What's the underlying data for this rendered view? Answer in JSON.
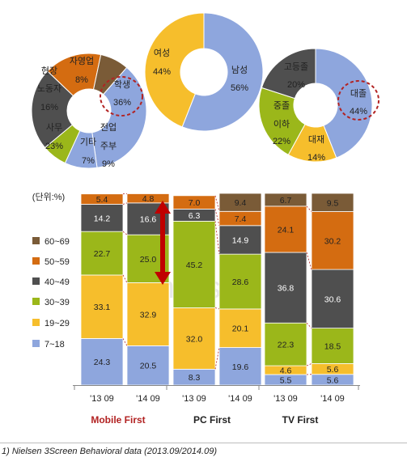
{
  "colors": {
    "c7_18": "#8EA6DD",
    "c19_29": "#F6BE2C",
    "c30_39": "#9BB71A",
    "c40_49": "#4F4F4F",
    "c50_59": "#D46C11",
    "c60_69": "#7A5B37",
    "occ_student": "#8EA6DD",
    "occ_fulltime": "#8EA6DD",
    "occ_housewife": "#F6BE2C",
    "occ_other": "#9BB71A",
    "occ_labor": "#4F4F4F",
    "occ_field": "#D46C11",
    "occ_self": "#7A5B37",
    "gender_male": "#8EA6DD",
    "gender_female": "#F6BE2C",
    "edu_college": "#8EA6DD",
    "edu_univ": "#F6BE2C",
    "edu_middle": "#9BB71A",
    "edu_high": "#4F4F4F",
    "highlight": "#B22222",
    "arrow": "#C00000",
    "watermark": "#BFBFBF"
  },
  "chart_data": [
    {
      "type": "pie",
      "variant": "donut",
      "slices": [
        {
          "name": "학생",
          "value": 36,
          "label": "36%"
        },
        {
          "name": "전업주부",
          "value": 9,
          "label": "9%"
        },
        {
          "name": "기타",
          "value": 7,
          "label": "7%"
        },
        {
          "name": "사무",
          "value": 23,
          "label": "23%"
        },
        {
          "name": "현장 노동자",
          "value": 16,
          "label": "16%"
        },
        {
          "name": "자영업",
          "value": 8,
          "label": "8%"
        }
      ],
      "category_labels": {
        "student": "학생",
        "fulltime": "전업",
        "housewife": "주부",
        "other": "기타",
        "office": "사무",
        "field1": "현장",
        "field2": "노동자",
        "self": "자영업"
      },
      "highlighted": "학생"
    },
    {
      "type": "pie",
      "variant": "donut",
      "slices": [
        {
          "name": "남성",
          "value": 56,
          "label": "56%"
        },
        {
          "name": "여성",
          "value": 44,
          "label": "44%"
        }
      ]
    },
    {
      "type": "pie",
      "variant": "donut",
      "slices": [
        {
          "name": "대졸",
          "value": 44,
          "label": "44%"
        },
        {
          "name": "대재",
          "value": 14,
          "label": "14%"
        },
        {
          "name": "중졸 이하",
          "value": 22,
          "label": "22%"
        },
        {
          "name": "고등졸",
          "value": 20,
          "label": "20%"
        }
      ],
      "category_labels": {
        "college": "대졸",
        "univ": "대재",
        "middle1": "중졸",
        "middle2": "이하",
        "high": "고등졸"
      },
      "highlighted": "대졸"
    },
    {
      "type": "bar",
      "stacked": true,
      "percent": true,
      "unit_label": "(단위:%)",
      "categories": [
        "'13 09",
        "'14 09",
        "'13 09",
        "'14 09",
        "'13 09",
        "'14 09"
      ],
      "groups": [
        {
          "name": "Mobile First",
          "bars": [
            0,
            1
          ]
        },
        {
          "name": "PC First",
          "bars": [
            2,
            3
          ]
        },
        {
          "name": "TV First",
          "bars": [
            4,
            5
          ]
        }
      ],
      "series": [
        {
          "name": "7~18",
          "values": [
            24.3,
            20.5,
            8.3,
            19.6,
            5.5,
            5.6
          ]
        },
        {
          "name": "19~29",
          "values": [
            33.1,
            32.9,
            32.0,
            20.1,
            4.6,
            5.6
          ]
        },
        {
          "name": "30~39",
          "values": [
            22.7,
            25.0,
            45.2,
            28.6,
            22.3,
            18.5
          ]
        },
        {
          "name": "40~49",
          "values": [
            14.2,
            16.6,
            6.3,
            14.9,
            36.8,
            30.6
          ]
        },
        {
          "name": "50~59",
          "values": [
            5.4,
            4.8,
            7.0,
            7.4,
            24.1,
            30.2
          ]
        },
        {
          "name": "60~69",
          "values": [
            0.0,
            0.0,
            0.0,
            9.4,
            6.7,
            9.5
          ]
        }
      ],
      "legend": [
        "60~69",
        "50~59",
        "40~49",
        "30~39",
        "19~29",
        "7~18"
      ],
      "legend_position": "left",
      "watermark": "nielsen"
    }
  ],
  "footnote": "1) Nielsen 3Screen Behavioral data (2013.09/2014.09)"
}
